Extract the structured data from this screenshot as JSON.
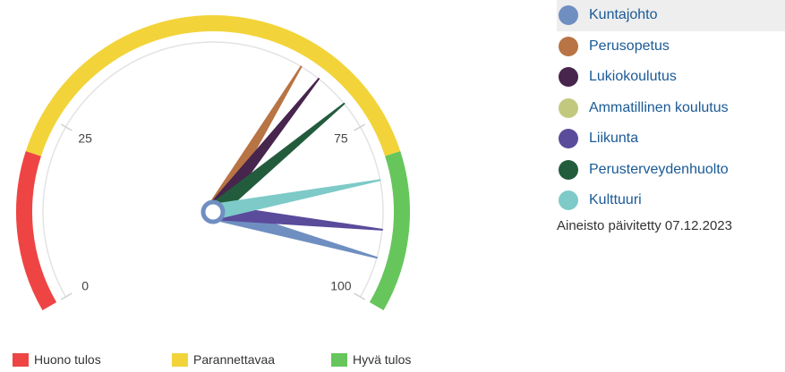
{
  "chart_data": {
    "type": "gauge",
    "scale": {
      "min": 0,
      "max": 100,
      "tick_labels": [
        "0",
        "25",
        "75",
        "100"
      ]
    },
    "bands": [
      {
        "name": "Huono tulos",
        "from": 0,
        "to": 20,
        "color": "#ef4444"
      },
      {
        "name": "Parannettavaa",
        "from": 20,
        "to": 80,
        "color": "#f2d43a"
      },
      {
        "name": "Hyvä tulos",
        "from": 80,
        "to": 100,
        "color": "#66c65c"
      }
    ],
    "series": [
      {
        "name": "Kuntajohto",
        "value": 94,
        "color": "#6f8fc1"
      },
      {
        "name": "Perusopetus",
        "value": 63,
        "color": "#b87444"
      },
      {
        "name": "Lukiokoulutus",
        "value": 66,
        "color": "#47254c"
      },
      {
        "name": "Ammatillinen koulutus",
        "value": null,
        "color": "#c2c97f"
      },
      {
        "name": "Liikunta",
        "value": 90,
        "color": "#5a4b9b"
      },
      {
        "name": "Perusterveydenhuolto",
        "value": 71,
        "color": "#235c3d"
      },
      {
        "name": "Kulttuuri",
        "value": 83,
        "color": "#7ecac8"
      }
    ],
    "legend": {
      "placement": "right"
    }
  },
  "legend_items": [
    {
      "label": "Kuntajohto",
      "color": "#6f8fc1"
    },
    {
      "label": "Perusopetus",
      "color": "#b87444"
    },
    {
      "label": "Lukiokoulutus",
      "color": "#47254c"
    },
    {
      "label": "Ammatillinen koulutus",
      "color": "#c2c97f"
    },
    {
      "label": "Liikunta",
      "color": "#5a4b9b"
    },
    {
      "label": "Perusterveydenhuolto",
      "color": "#235c3d"
    },
    {
      "label": "Kulttuuri",
      "color": "#7ecac8"
    }
  ],
  "updated_text": "Aineisto päivitetty 07.12.2023",
  "band_legend": [
    {
      "label": "Huono tulos",
      "color": "#ef4444"
    },
    {
      "label": "Parannettavaa",
      "color": "#f2d43a"
    },
    {
      "label": "Hyvä tulos",
      "color": "#66c65c"
    }
  ]
}
